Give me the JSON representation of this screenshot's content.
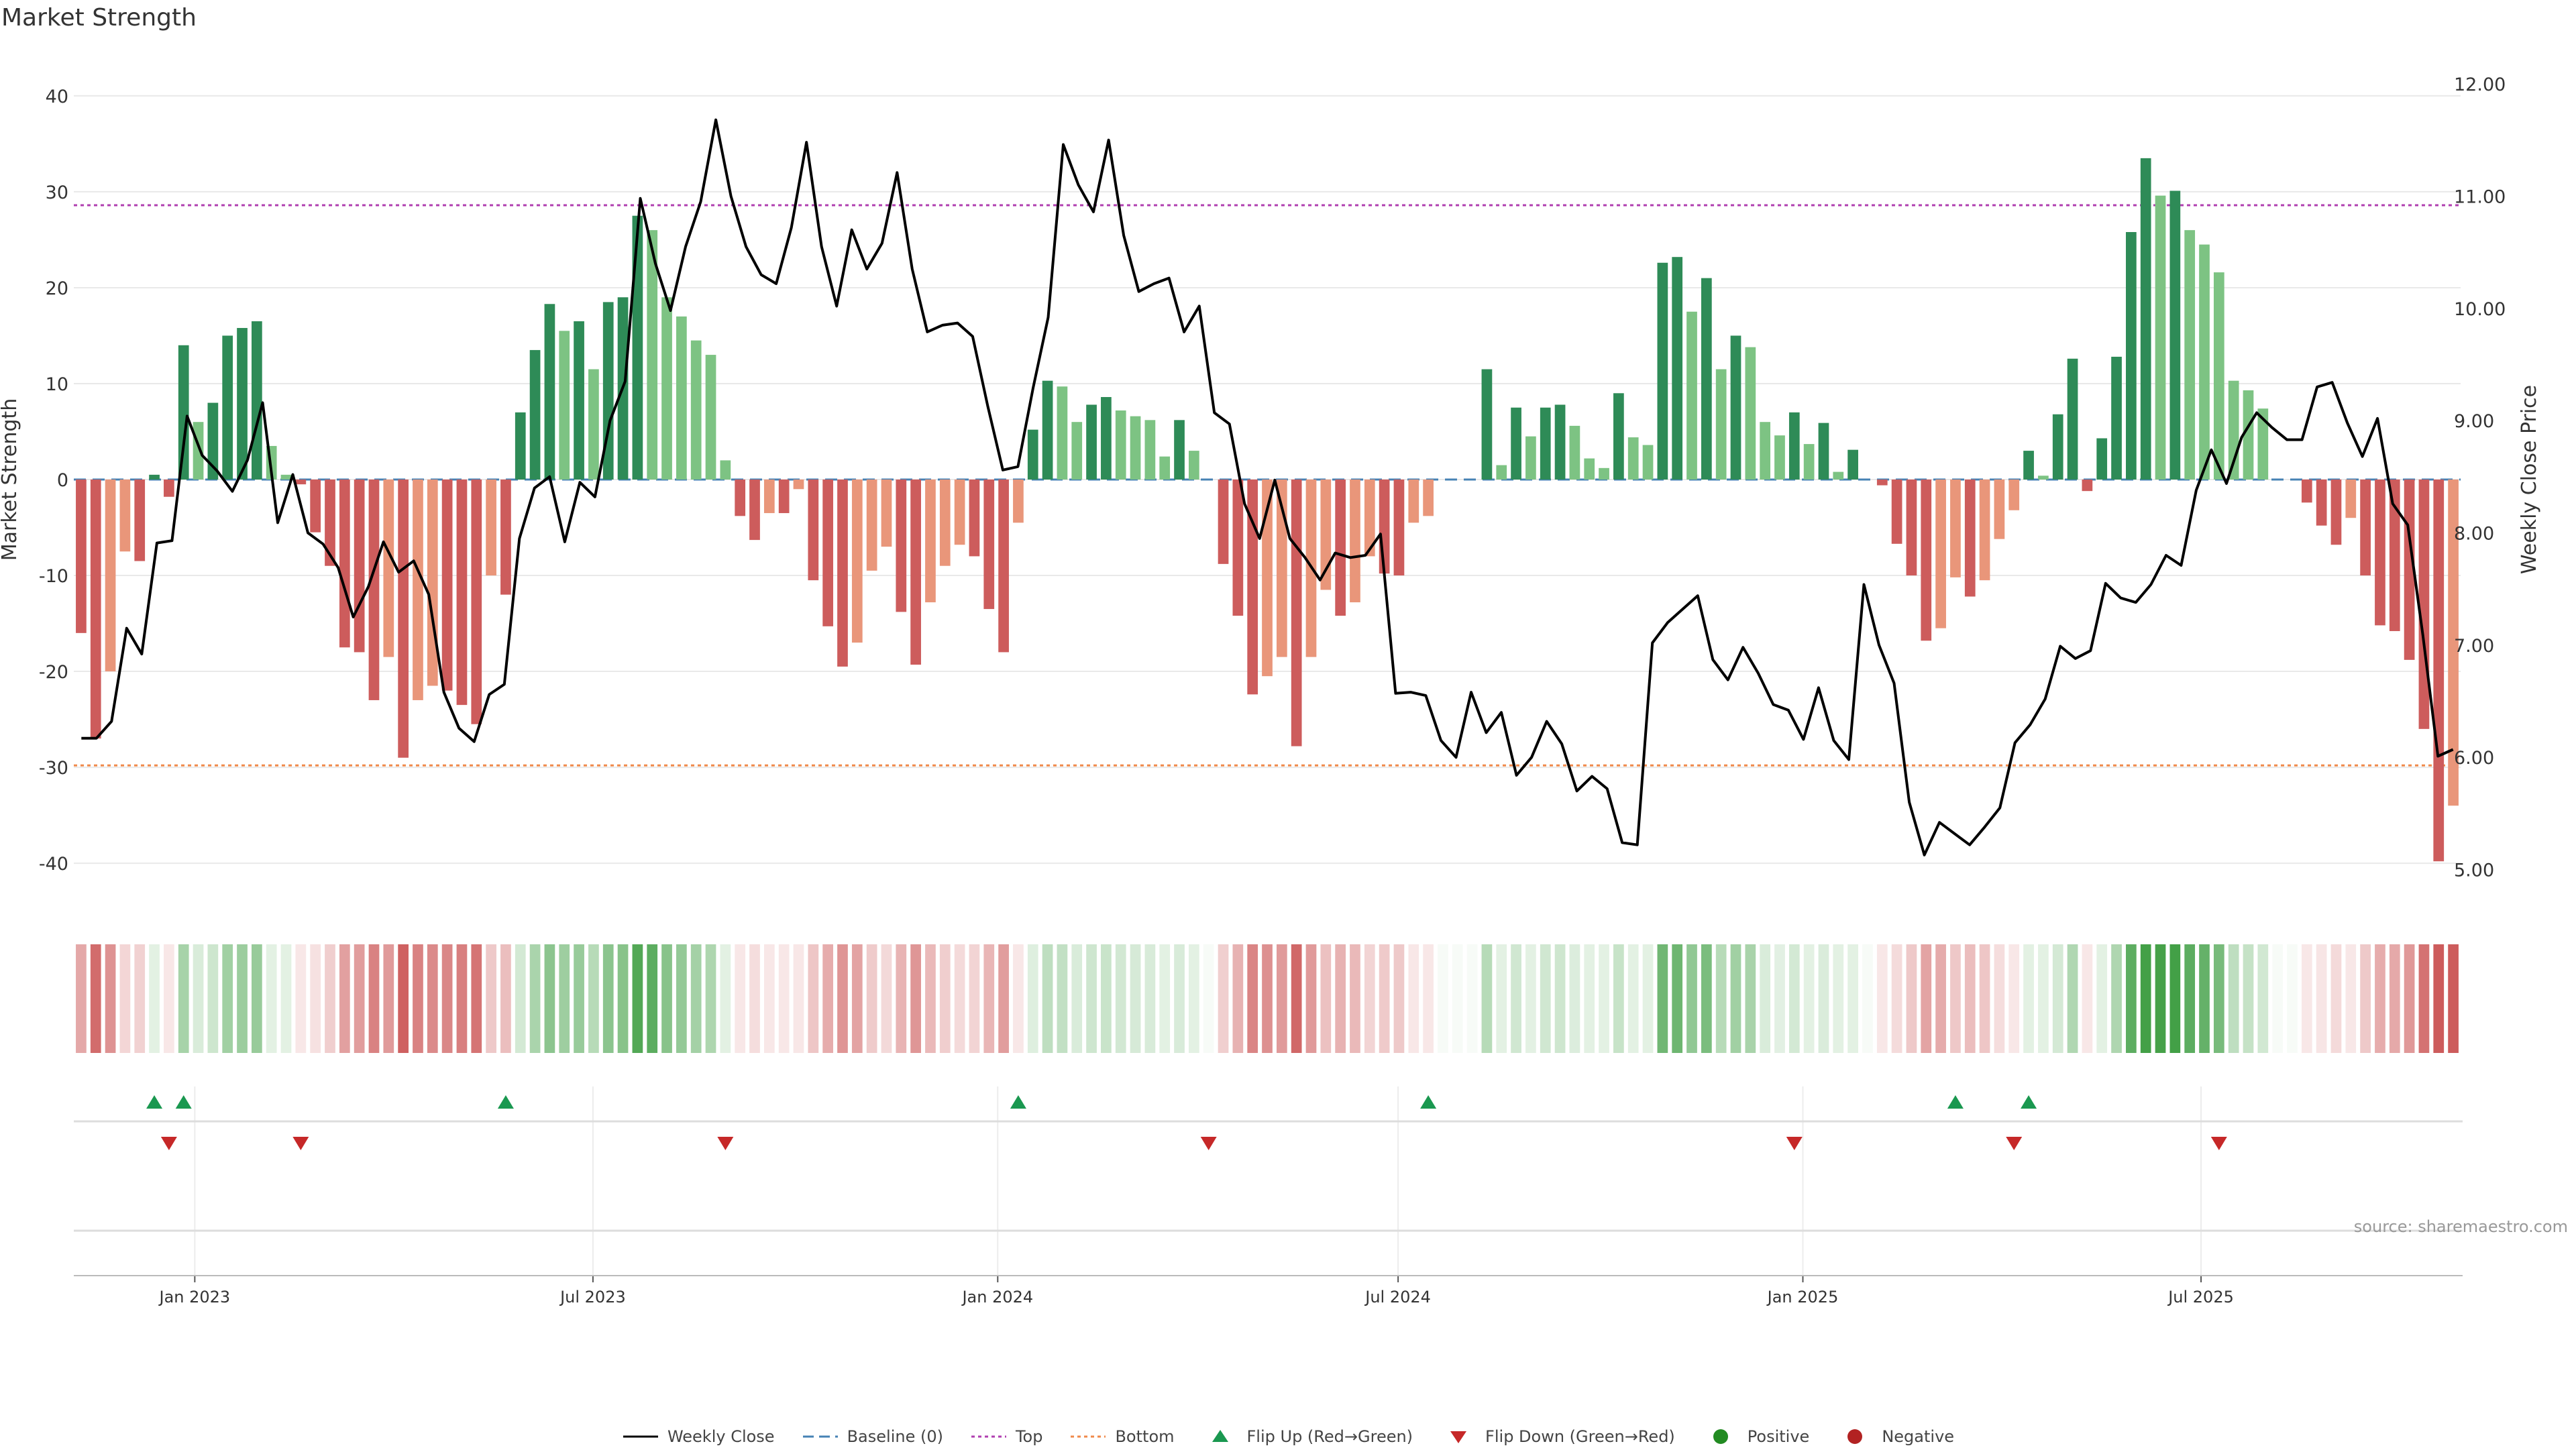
{
  "title": "Market Strength",
  "source": "source: sharemaestro.com",
  "colors": {
    "pos_dark": "#2e8b57",
    "pos_light": "#7dc383",
    "neg_dark": "#cd5c5c",
    "neg_light": "#e9967a",
    "price_line": "#000000",
    "baseline": "#4682b4",
    "top": "#b03fb0",
    "bottom": "#f08a4b",
    "flip_up": "#1a9850",
    "flip_down": "#c62828",
    "positive": "#228b22",
    "negative": "#b22222"
  },
  "chart_data": {
    "type": "bar",
    "title": "Market Strength",
    "ylabel": "Market Strength",
    "y2label": "Weekly Close Price",
    "ylim": [
      -43,
      43
    ],
    "y2lim": [
      4.8,
      12.15
    ],
    "yticks": [
      -40,
      -30,
      -20,
      -10,
      0,
      10,
      20,
      30,
      40
    ],
    "y2ticks": [
      "5.00",
      "6.00",
      "7.00",
      "8.00",
      "9.00",
      "10.00",
      "11.00",
      "12.00"
    ],
    "x_start": "2022-11-07",
    "x_end": "2025-10-27",
    "x_ticks": [
      {
        "date": "2023-01-01",
        "label": "Jan 2023"
      },
      {
        "date": "2023-07-01",
        "label": "Jul 2023"
      },
      {
        "date": "2024-01-01",
        "label": "Jan 2024"
      },
      {
        "date": "2024-07-01",
        "label": "Jul 2024"
      },
      {
        "date": "2025-01-01",
        "label": "Jan 2025"
      },
      {
        "date": "2025-07-01",
        "label": "Jul 2025"
      }
    ],
    "reference_lines": {
      "baseline": 0,
      "top": 28.6,
      "bottom": -29.8
    },
    "strength": [
      -16,
      -27,
      -20,
      -7.5,
      -8.5,
      0.5,
      -1.8,
      14,
      6,
      8,
      15,
      15.8,
      16.5,
      3.5,
      0.5,
      -0.5,
      -5.5,
      -9,
      -17.5,
      -18,
      -23,
      -18.5,
      -29,
      -23,
      -21.5,
      -22,
      -23.5,
      -25.5,
      -10,
      -12,
      7,
      13.5,
      18.3,
      15.5,
      16.5,
      11.5,
      18.5,
      19,
      27.5,
      26,
      19,
      17,
      14.5,
      13,
      2,
      -3.8,
      -6.3,
      -3.5,
      -3.5,
      -1,
      -10.5,
      -15.3,
      -19.5,
      -17,
      -9.5,
      -7,
      -13.8,
      -19.3,
      -12.8,
      -9,
      -6.8,
      -8,
      -13.5,
      -18,
      -4.5,
      5.2,
      10.3,
      9.7,
      6,
      7.8,
      8.6,
      7.2,
      6.6,
      6.2,
      2.4,
      6.2,
      3,
      0,
      -8.8,
      -14.2,
      -22.4,
      -20.5,
      -18.5,
      -27.8,
      -18.5,
      -11.5,
      -14.2,
      -12.8,
      -8,
      -9.8,
      -10,
      -4.5,
      -3.8,
      0,
      0,
      0,
      11.5,
      1.5,
      7.5,
      4.5,
      7.5,
      7.8,
      5.6,
      2.2,
      1.2,
      9,
      4.4,
      3.6,
      22.6,
      23.2,
      17.5,
      21,
      11.5,
      15,
      13.8,
      6,
      4.6,
      7,
      3.7,
      5.9,
      0.8,
      3.1,
      0,
      -0.6,
      -6.7,
      -10,
      -16.8,
      -15.5,
      -10.2,
      -12.2,
      -10.5,
      -6.2,
      -3.2,
      3,
      0.4,
      6.8,
      12.6,
      -1.2,
      4.3,
      12.8,
      25.8,
      33.5,
      29.6,
      30.1,
      26,
      24.5,
      21.6,
      10.3,
      9.3,
      7.4,
      0,
      0,
      -2.4,
      -4.8,
      -6.8,
      -4,
      -10,
      -15.2,
      -15.8,
      -18.8,
      -26,
      -39.8,
      -34
    ],
    "weekly_close": [
      6.17,
      6.17,
      6.32,
      7.15,
      6.92,
      7.91,
      7.93,
      9.04,
      8.69,
      8.55,
      8.37,
      8.65,
      9.16,
      8.09,
      8.52,
      8.0,
      7.9,
      7.69,
      7.25,
      7.52,
      7.92,
      7.65,
      7.75,
      7.45,
      6.58,
      6.26,
      6.14,
      6.56,
      6.65,
      7.95,
      8.4,
      8.5,
      7.92,
      8.45,
      8.32,
      9.0,
      9.35,
      10.98,
      10.4,
      9.98,
      10.55,
      10.95,
      11.68,
      11.0,
      10.55,
      10.3,
      10.22,
      10.72,
      11.48,
      10.55,
      10.02,
      10.7,
      10.35,
      10.58,
      11.21,
      10.35,
      9.79,
      9.85,
      9.87,
      9.75,
      9.13,
      8.56,
      8.59,
      9.29,
      9.92,
      11.46,
      11.1,
      10.86,
      11.5,
      10.65,
      10.15,
      10.22,
      10.27,
      9.79,
      10.02,
      9.07,
      8.97,
      8.26,
      7.95,
      8.47,
      7.95,
      7.78,
      7.58,
      7.82,
      7.78,
      7.8,
      7.99,
      6.57,
      6.58,
      6.55,
      6.15,
      6.0,
      6.58,
      6.22,
      6.4,
      5.84,
      6.0,
      6.32,
      6.12,
      5.7,
      5.83,
      5.72,
      5.24,
      5.22,
      7.02,
      7.2,
      7.32,
      7.44,
      6.87,
      6.69,
      6.98,
      6.75,
      6.47,
      6.42,
      6.16,
      6.62,
      6.15,
      5.98,
      7.54,
      7.0,
      6.66,
      5.6,
      5.13,
      5.42,
      5.32,
      5.22,
      5.38,
      5.55,
      6.13,
      6.29,
      6.52,
      6.99,
      6.88,
      6.95,
      7.55,
      7.42,
      7.38,
      7.54,
      7.8,
      7.71,
      8.38,
      8.74,
      8.44,
      8.85,
      9.07,
      8.94,
      8.83,
      8.83,
      9.3,
      9.34,
      8.98,
      8.68,
      9.02,
      8.26,
      8.07,
      7.09,
      6.01,
      6.07
    ],
    "heat_strips": [
      -16,
      -27,
      -20,
      -7.5,
      -8.5,
      0.5,
      -1.8,
      14,
      6,
      8,
      15,
      15.8,
      16.5,
      3.5,
      0.5,
      -0.5,
      -5.5,
      -9,
      -17.5,
      -18,
      -23,
      -18.5,
      -29,
      -23,
      -21.5,
      -22,
      -23.5,
      -25.5,
      -10,
      -12,
      7,
      13.5,
      18.3,
      15.5,
      16.5,
      11.5,
      18.5,
      19,
      27.5,
      26,
      19,
      17,
      14.5,
      13,
      2,
      -3.8,
      -6.3,
      -3.5,
      -3.5,
      -1,
      -10.5,
      -15.3,
      -19.5,
      -17,
      -9.5,
      -7,
      -13.8,
      -19.3,
      -12.8,
      -9,
      -6.8,
      -8,
      -13.5,
      -18,
      -4.5,
      5.2,
      10.3,
      9.7,
      6,
      7.8,
      8.6,
      7.2,
      6.6,
      6.2,
      2.4,
      6.2,
      3,
      0,
      -8.8,
      -14.2,
      -22.4,
      -20.5,
      -18.5,
      -27.8,
      -18.5,
      -11.5,
      -14.2,
      -12.8,
      -8,
      -9.8,
      -10,
      -4.5,
      -3.8,
      0,
      0,
      0,
      11.5,
      1.5,
      7.5,
      4.5,
      7.5,
      7.8,
      5.6,
      2.2,
      1.2,
      9,
      4.4,
      3.6,
      22.6,
      23.2,
      17.5,
      21,
      11.5,
      15,
      13.8,
      6,
      4.6,
      7,
      3.7,
      5.9,
      0.8,
      3.1,
      0,
      -0.6,
      -6.7,
      -10,
      -16.8,
      -15.5,
      -10.2,
      -12.2,
      -10.5,
      -6.2,
      -3.2,
      3,
      0.4,
      6.8,
      12.6,
      -1.2,
      4.3,
      12.8,
      25.8,
      33.5,
      29.6,
      30.1,
      26,
      24.5,
      21.6,
      10.3,
      9.3,
      7.4,
      0,
      0,
      -2.4,
      -4.8,
      -6.8,
      -4,
      -10,
      -15.2,
      -15.8,
      -18.8,
      -26,
      -39.8,
      -34
    ],
    "flip_up_weeks": [
      5,
      7,
      29,
      64,
      92,
      128,
      133
    ],
    "flip_down_weeks": [
      6,
      15,
      44,
      77,
      117,
      132,
      146
    ],
    "legend": [
      {
        "key": "weekly_close",
        "label": "Weekly Close"
      },
      {
        "key": "baseline",
        "label": "Baseline (0)"
      },
      {
        "key": "top",
        "label": "Top"
      },
      {
        "key": "bottom",
        "label": "Bottom"
      },
      {
        "key": "flip_up",
        "label": "Flip Up (Red→Green)"
      },
      {
        "key": "flip_down",
        "label": "Flip Down (Green→Red)"
      },
      {
        "key": "positive",
        "label": "Positive"
      },
      {
        "key": "negative",
        "label": "Negative"
      }
    ]
  }
}
